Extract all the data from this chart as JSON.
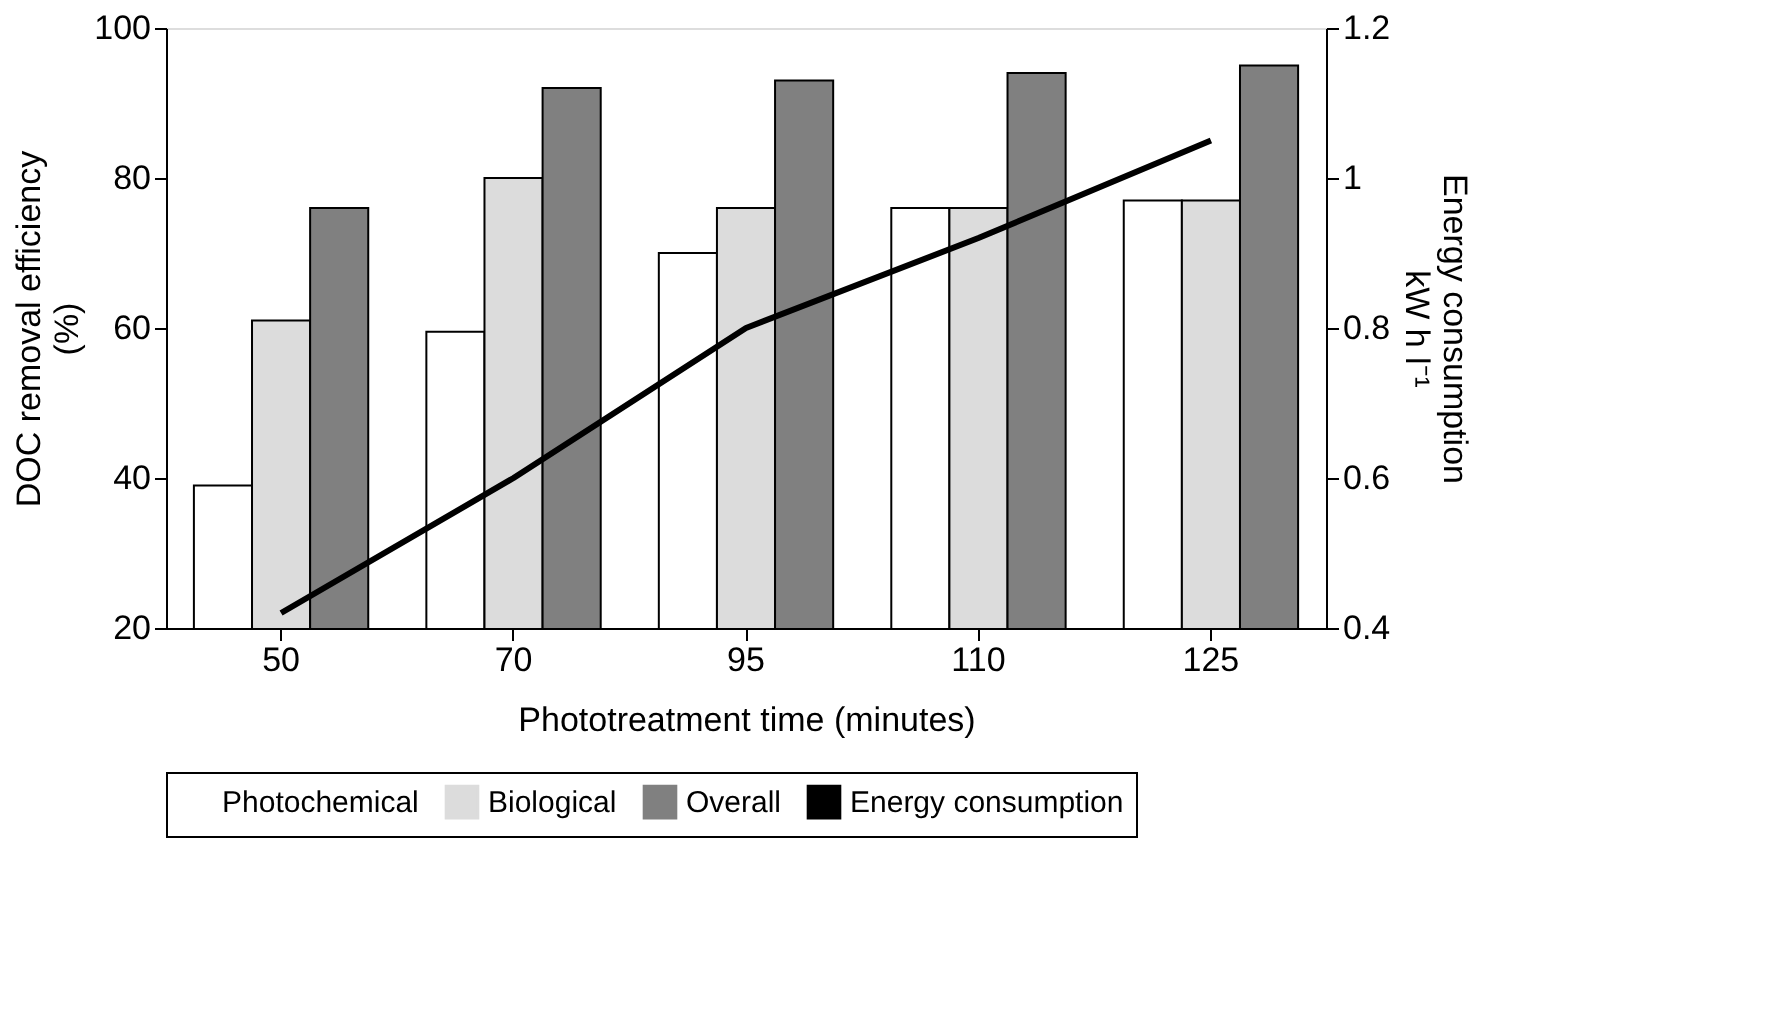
{
  "chart_data": {
    "type": "bar",
    "xlabel": "Phototreatment time (minutes)",
    "ylabel": "DOC removal efficiency\n(%)",
    "y2label": "Energy consumption\nkW h l⁻¹",
    "categories": [
      "50",
      "70",
      "95",
      "110",
      "125"
    ],
    "series": [
      {
        "name": "Photochemical",
        "color": "#ffffff",
        "values": [
          39,
          59.5,
          70,
          76,
          77
        ]
      },
      {
        "name": "Biological",
        "color": "#dcdcdc",
        "values": [
          61,
          80,
          76,
          76,
          77
        ]
      },
      {
        "name": "Overall",
        "color": "#808080",
        "values": [
          76,
          92,
          93,
          94,
          95
        ]
      },
      {
        "name": "Energy consumption",
        "type": "line",
        "axis": "y2",
        "color": "#000000",
        "values": [
          0.42,
          0.6,
          0.8,
          0.92,
          1.05
        ]
      }
    ],
    "ylim": [
      20,
      100
    ],
    "yticks": [
      20,
      40,
      60,
      80,
      100
    ],
    "y2lim": [
      0.4,
      1.2
    ],
    "y2ticks": [
      0.4,
      0.6,
      0.8,
      {
        "value": 1,
        "label": "1"
      },
      1.2
    ],
    "grid": false,
    "legend": "bottom",
    "marker": "none",
    "line_style": "solid"
  }
}
